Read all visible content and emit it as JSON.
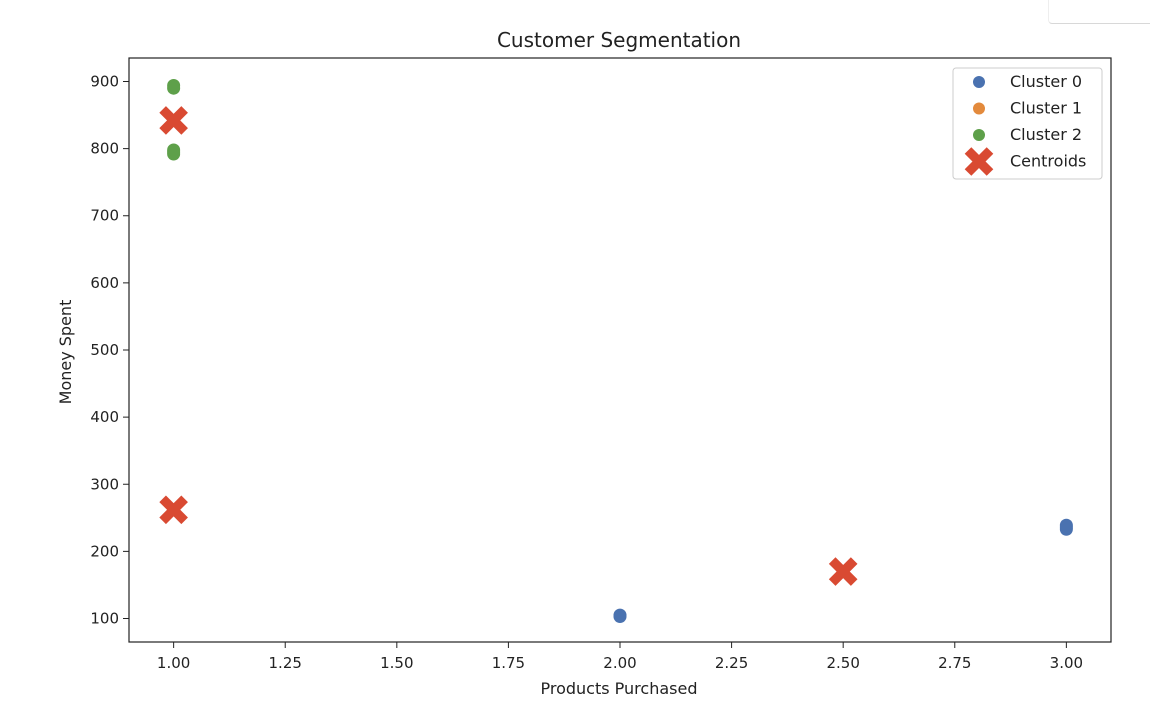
{
  "chart_data": {
    "type": "scatter",
    "title": "Customer Segmentation",
    "xlabel": "Products Purchased",
    "ylabel": "Money Spent",
    "xlim": [
      0.9,
      3.1
    ],
    "ylim": [
      65,
      935
    ],
    "xticks": [
      "1.00",
      "1.25",
      "1.50",
      "1.75",
      "2.00",
      "2.25",
      "2.50",
      "2.75",
      "3.00"
    ],
    "yticks": [
      "100",
      "200",
      "300",
      "400",
      "500",
      "600",
      "700",
      "800",
      "900"
    ],
    "grid": false,
    "legend_position": "top-right",
    "series": [
      {
        "name": "Cluster 0",
        "color": "#4a72b0",
        "marker": "circle",
        "points": [
          [
            2,
            103
          ],
          [
            2,
            105
          ],
          [
            3,
            233
          ],
          [
            3,
            236
          ],
          [
            3,
            239
          ]
        ]
      },
      {
        "name": "Cluster 1",
        "color": "#e38a3c",
        "marker": "circle",
        "points": []
      },
      {
        "name": "Cluster 2",
        "color": "#5ea04a",
        "marker": "circle",
        "points": [
          [
            1,
            890
          ],
          [
            1,
            894
          ],
          [
            1,
            792
          ],
          [
            1,
            795
          ],
          [
            1,
            798
          ]
        ]
      },
      {
        "name": "Centroids",
        "color": "#d94a32",
        "marker": "x",
        "points": [
          [
            1,
            842
          ],
          [
            1,
            262
          ],
          [
            2.5,
            170
          ]
        ]
      }
    ]
  }
}
